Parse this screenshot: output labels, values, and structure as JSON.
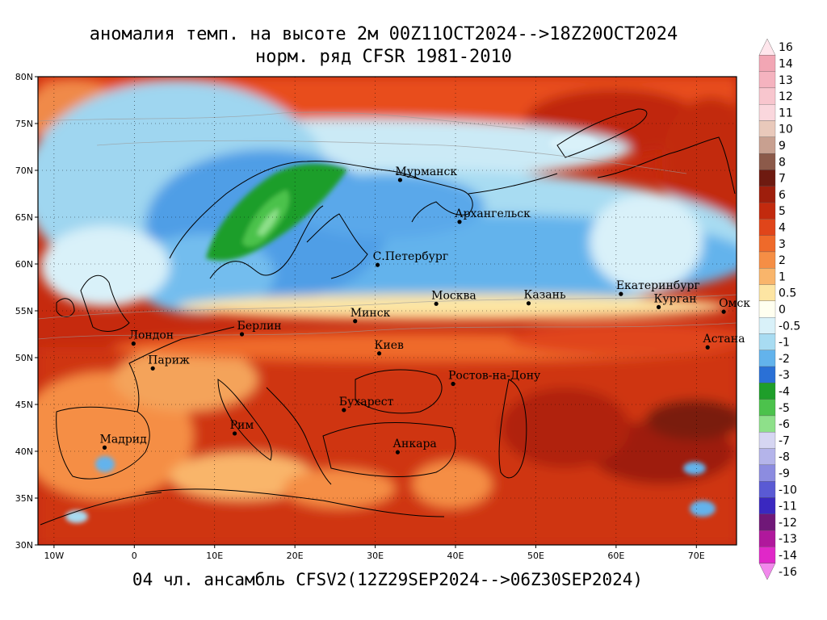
{
  "header": {
    "title_line1": "аномалия темп. на высоте 2м 00Z11OCT2024-->18Z20OCT2024",
    "title_line2": "норм. ряд CFSR 1981-2010"
  },
  "footer": {
    "ensemble": "04 чл. ансамбль CFSV2(12Z29SEP2024-->06Z30SEP2024)"
  },
  "map": {
    "lon_range": [
      -12,
      75
    ],
    "lat_range": [
      30,
      80
    ],
    "lat_ticks": [
      {
        "value": 80,
        "label": "80N"
      },
      {
        "value": 75,
        "label": "75N"
      },
      {
        "value": 70,
        "label": "70N"
      },
      {
        "value": 65,
        "label": "65N"
      },
      {
        "value": 60,
        "label": "60N"
      },
      {
        "value": 55,
        "label": "55N"
      },
      {
        "value": 50,
        "label": "50N"
      },
      {
        "value": 45,
        "label": "45N"
      },
      {
        "value": 40,
        "label": "40N"
      },
      {
        "value": 35,
        "label": "35N"
      },
      {
        "value": 30,
        "label": "30N"
      }
    ],
    "lon_ticks": [
      {
        "value": -10,
        "label": "10W"
      },
      {
        "value": 0,
        "label": "0"
      },
      {
        "value": 10,
        "label": "10E"
      },
      {
        "value": 20,
        "label": "20E"
      },
      {
        "value": 30,
        "label": "30E"
      },
      {
        "value": 40,
        "label": "40E"
      },
      {
        "value": 50,
        "label": "50E"
      },
      {
        "value": 60,
        "label": "60E"
      },
      {
        "value": 70,
        "label": "70E"
      }
    ],
    "cities": [
      {
        "name": "Мурманск",
        "lon": 33.1,
        "lat": 68.97
      },
      {
        "name": "Архангельск",
        "lon": 40.5,
        "lat": 64.5
      },
      {
        "name": "С.Петербург",
        "lon": 30.3,
        "lat": 59.9
      },
      {
        "name": "Москва",
        "lon": 37.6,
        "lat": 55.75
      },
      {
        "name": "Казань",
        "lon": 49.1,
        "lat": 55.8
      },
      {
        "name": "Екатеринбург",
        "lon": 60.6,
        "lat": 56.8
      },
      {
        "name": "Курган",
        "lon": 65.3,
        "lat": 55.4
      },
      {
        "name": "Омск",
        "lon": 73.4,
        "lat": 54.9
      },
      {
        "name": "Астана",
        "lon": 71.4,
        "lat": 51.1
      },
      {
        "name": "Минск",
        "lon": 27.5,
        "lat": 53.9
      },
      {
        "name": "Берлин",
        "lon": 13.4,
        "lat": 52.5
      },
      {
        "name": "Лондон",
        "lon": -0.1,
        "lat": 51.5
      },
      {
        "name": "Париж",
        "lon": 2.3,
        "lat": 48.85
      },
      {
        "name": "Киев",
        "lon": 30.5,
        "lat": 50.45
      },
      {
        "name": "Ростов-на-Дону",
        "lon": 39.7,
        "lat": 47.2
      },
      {
        "name": "Бухарест",
        "lon": 26.1,
        "lat": 44.4
      },
      {
        "name": "Рим",
        "lon": 12.5,
        "lat": 41.9
      },
      {
        "name": "Мадрид",
        "lon": -3.7,
        "lat": 40.4
      },
      {
        "name": "Анкара",
        "lon": 32.8,
        "lat": 39.9
      }
    ]
  },
  "colorbar": {
    "levels": [
      {
        "label": "16",
        "color": "#ffe6ec"
      },
      {
        "label": "14",
        "color": "#f2a6b4"
      },
      {
        "label": "13",
        "color": "#f5b3bf"
      },
      {
        "label": "12",
        "color": "#f8c6ce"
      },
      {
        "label": "11",
        "color": "#fad7dd"
      },
      {
        "label": "10",
        "color": "#e9c9bb"
      },
      {
        "label": "9",
        "color": "#c8a090"
      },
      {
        "label": "8",
        "color": "#8c5a4a"
      },
      {
        "label": "7",
        "color": "#6e1a10"
      },
      {
        "label": "6",
        "color": "#9e1e0c"
      },
      {
        "label": "5",
        "color": "#c22a0e"
      },
      {
        "label": "4",
        "color": "#e0451a"
      },
      {
        "label": "3",
        "color": "#ef6a2a"
      },
      {
        "label": "2",
        "color": "#f58e45"
      },
      {
        "label": "1",
        "color": "#f9b56b"
      },
      {
        "label": "0.5",
        "color": "#fde5a3"
      },
      {
        "label": "0",
        "color": "#fffff0"
      },
      {
        "label": "-0.5",
        "color": "#d9f1f9"
      },
      {
        "label": "-1",
        "color": "#a8dcf2"
      },
      {
        "label": "-2",
        "color": "#63b3ec"
      },
      {
        "label": "-3",
        "color": "#2a70d6"
      },
      {
        "label": "-4",
        "color": "#1e9e2a"
      },
      {
        "label": "-5",
        "color": "#4cc24c"
      },
      {
        "label": "-6",
        "color": "#8ee08a"
      },
      {
        "label": "-7",
        "color": "#d6d6f2"
      },
      {
        "label": "-8",
        "color": "#b4b4ea"
      },
      {
        "label": "-9",
        "color": "#8c8ce0"
      },
      {
        "label": "-10",
        "color": "#5a5ad4"
      },
      {
        "label": "-11",
        "color": "#3a28c0"
      },
      {
        "label": "-12",
        "color": "#701878"
      },
      {
        "label": "-13",
        "color": "#b0189c"
      },
      {
        "label": "-14",
        "color": "#e028c8"
      },
      {
        "label": "-16",
        "color": "#f288ec"
      }
    ]
  }
}
